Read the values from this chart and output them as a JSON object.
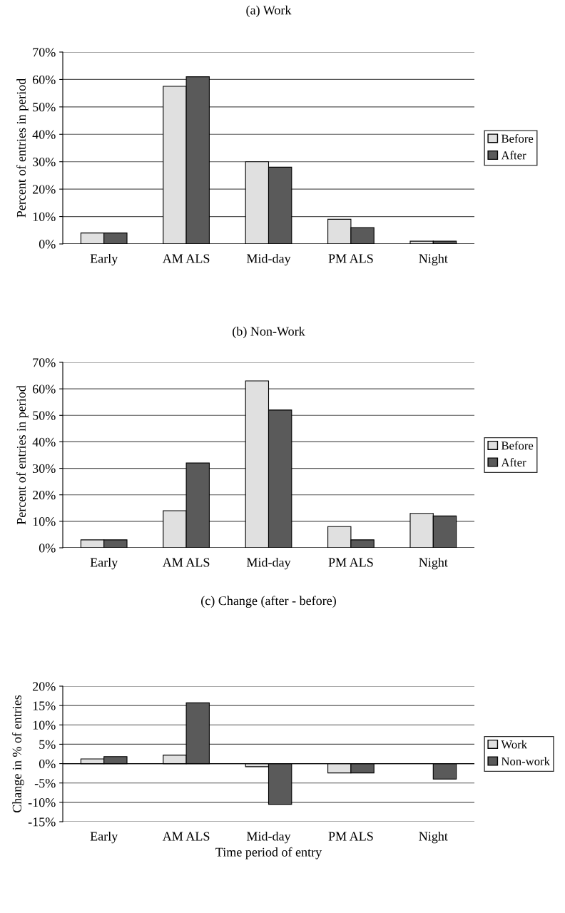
{
  "chart_data": [
    {
      "type": "bar",
      "title": "(a) Work",
      "ylabel": "Percent of entries in period",
      "categories": [
        "Early",
        "AM ALS",
        "Mid-day",
        "PM ALS",
        "Night"
      ],
      "series": [
        {
          "name": "Before",
          "color": "#e0e0e0",
          "values": [
            4,
            57.5,
            30,
            9,
            1
          ]
        },
        {
          "name": "After",
          "color": "#5a5a5a",
          "values": [
            4,
            61,
            28,
            6,
            1
          ]
        }
      ],
      "ylim": [
        0,
        70
      ],
      "yticks": [
        {
          "value": 0,
          "label": "0%"
        },
        {
          "value": 10,
          "label": "10%"
        },
        {
          "value": 20,
          "label": "20%"
        },
        {
          "value": 30,
          "label": "30%"
        },
        {
          "value": 40,
          "label": "40%"
        },
        {
          "value": 50,
          "label": "50%"
        },
        {
          "value": 60,
          "label": "60%"
        },
        {
          "value": 70,
          "label": "70%"
        }
      ],
      "grid": "y",
      "legend": "right"
    },
    {
      "type": "bar",
      "title": "(b) Non-Work",
      "ylabel": "Percent of entries in period",
      "categories": [
        "Early",
        "AM ALS",
        "Mid-day",
        "PM ALS",
        "Night"
      ],
      "series": [
        {
          "name": "Before",
          "color": "#e0e0e0",
          "values": [
            3,
            14,
            63,
            8,
            13
          ]
        },
        {
          "name": "After",
          "color": "#5a5a5a",
          "values": [
            3,
            32,
            52,
            3,
            12
          ]
        }
      ],
      "ylim": [
        0,
        70
      ],
      "yticks": [
        {
          "value": 0,
          "label": "0%"
        },
        {
          "value": 10,
          "label": "10%"
        },
        {
          "value": 20,
          "label": "20%"
        },
        {
          "value": 30,
          "label": "30%"
        },
        {
          "value": 40,
          "label": "40%"
        },
        {
          "value": 50,
          "label": "50%"
        },
        {
          "value": 60,
          "label": "60%"
        },
        {
          "value": 70,
          "label": "70%"
        }
      ],
      "grid": "y",
      "legend": "right"
    },
    {
      "type": "bar",
      "title": "(c) Change (after - before)",
      "ylabel": "Change in % of entries",
      "xlabel": "Time period of entry",
      "categories": [
        "Early",
        "AM ALS",
        "Mid-day",
        "PM ALS",
        "Night"
      ],
      "series": [
        {
          "name": "Work",
          "color": "#e0e0e0",
          "values": [
            1.2,
            2.2,
            -0.8,
            -2.4,
            null
          ]
        },
        {
          "name": "Non-work",
          "color": "#5a5a5a",
          "values": [
            1.8,
            15.7,
            -10.5,
            -2.4,
            -4.0
          ]
        }
      ],
      "ylim": [
        -15,
        20
      ],
      "yticks": [
        {
          "value": -15,
          "label": "-15%"
        },
        {
          "value": -10,
          "label": "-10%"
        },
        {
          "value": -5,
          "label": "-5%"
        },
        {
          "value": 0,
          "label": "0%"
        },
        {
          "value": 5,
          "label": "5%"
        },
        {
          "value": 10,
          "label": "10%"
        },
        {
          "value": 15,
          "label": "15%"
        },
        {
          "value": 20,
          "label": "20%"
        }
      ],
      "grid": "y",
      "legend": "right"
    }
  ]
}
